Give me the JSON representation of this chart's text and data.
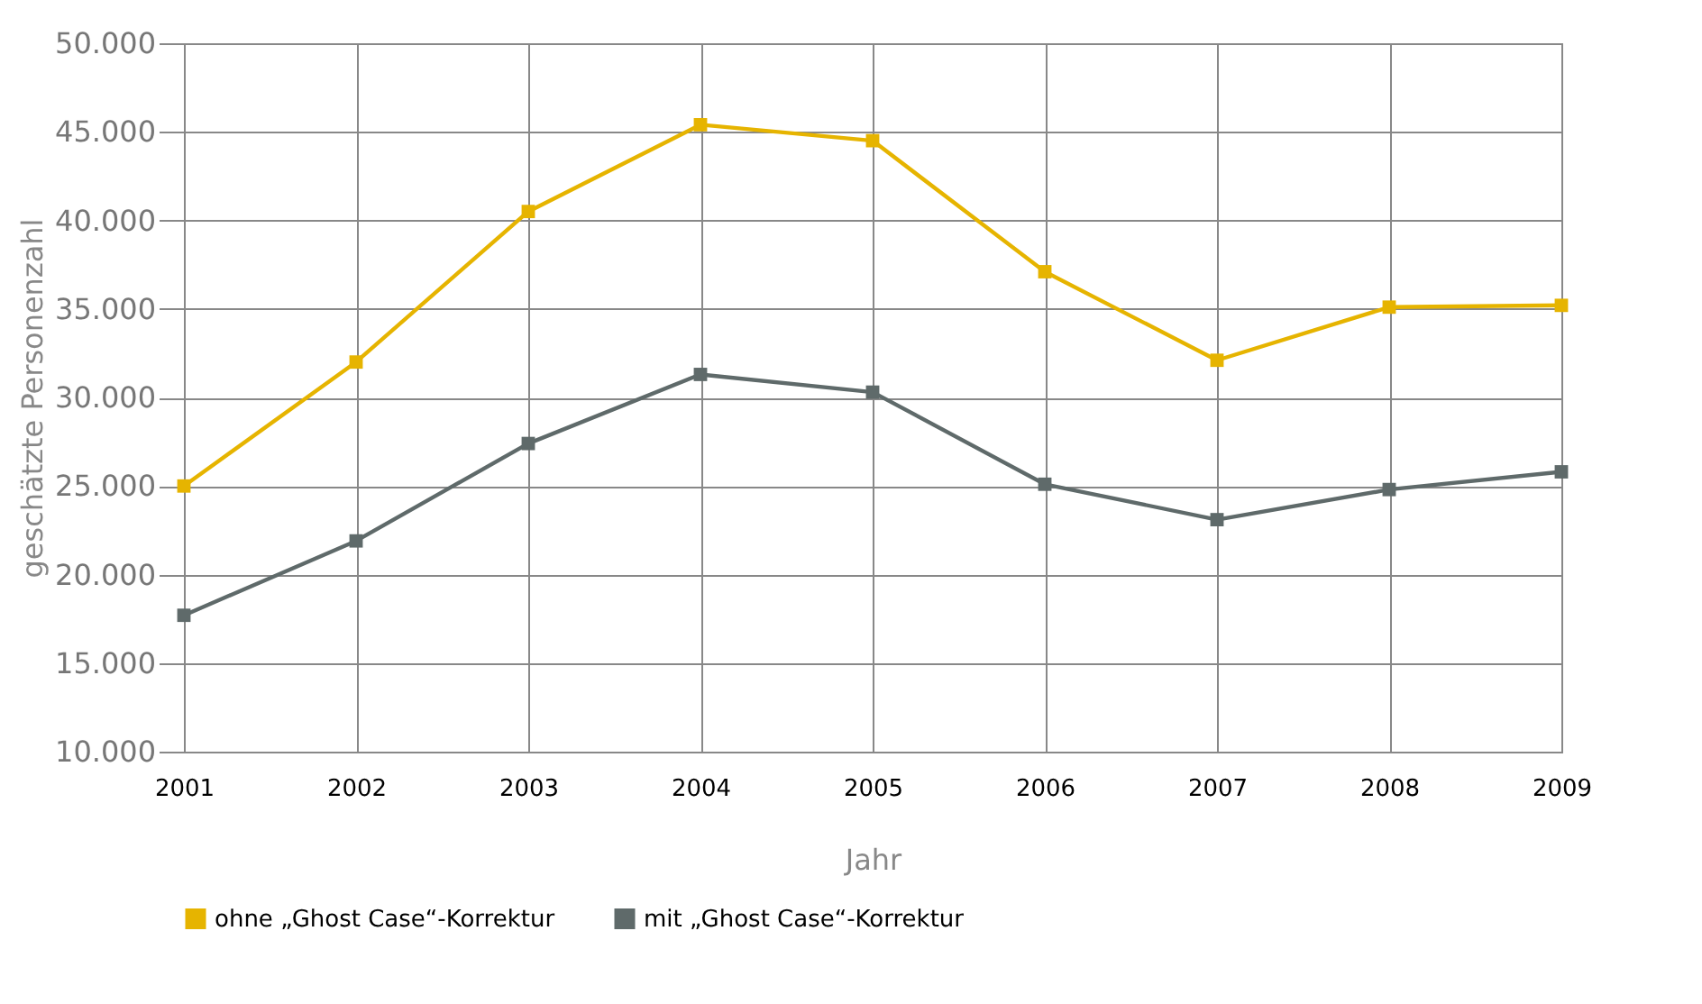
{
  "chart_data": {
    "type": "line",
    "xlabel": "Jahr",
    "ylabel": "geschätzte Personenzahl",
    "x": [
      2001,
      2002,
      2003,
      2004,
      2005,
      2006,
      2007,
      2008,
      2009
    ],
    "xlim": [
      2001,
      2009
    ],
    "xticks": [
      2001,
      2002,
      2003,
      2004,
      2005,
      2006,
      2007,
      2008,
      2009
    ],
    "ylim": [
      10000,
      50000
    ],
    "yticks": [
      {
        "value": 10000,
        "label": "10.000"
      },
      {
        "value": 15000,
        "label": "15.000"
      },
      {
        "value": 20000,
        "label": "20.000"
      },
      {
        "value": 25000,
        "label": "25.000"
      },
      {
        "value": 30000,
        "label": "30.000"
      },
      {
        "value": 35000,
        "label": "35.000"
      },
      {
        "value": 40000,
        "label": "40.000"
      },
      {
        "value": 45000,
        "label": "45.000"
      },
      {
        "value": 50000,
        "label": "50.000"
      }
    ],
    "series": [
      {
        "name": "ohne „Ghost Case“-Korrektur",
        "color": "#e6b400",
        "values": [
          25000,
          32000,
          40500,
          45400,
          44500,
          37100,
          32100,
          35100,
          35200
        ]
      },
      {
        "name": "mit „Ghost Case“-Korrektur",
        "color": "#5f6a6a",
        "values": [
          17700,
          21900,
          27400,
          31300,
          30300,
          25100,
          23100,
          24800,
          25800
        ]
      }
    ],
    "grid": true,
    "legend": "bottom",
    "marker": "square",
    "line_style": "solid"
  }
}
